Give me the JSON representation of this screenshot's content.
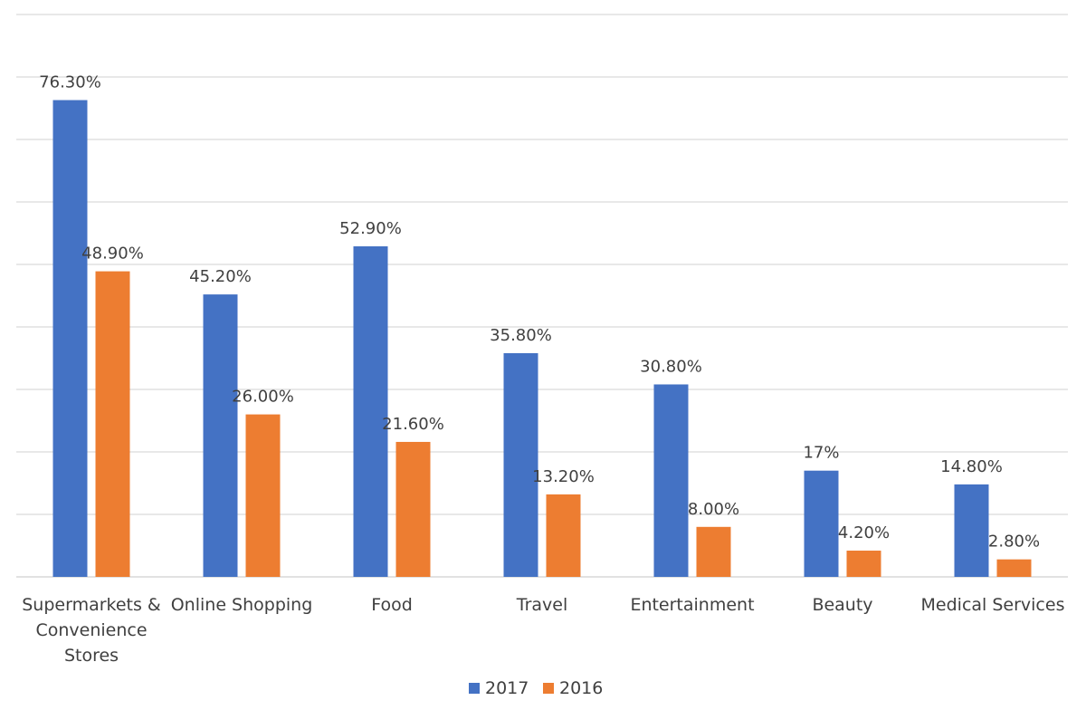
{
  "chart_data": {
    "type": "bar",
    "title": "",
    "xlabel": "",
    "ylabel": "",
    "ylim": [
      0,
      90
    ],
    "grid": true,
    "legend_position": "bottom",
    "categories": [
      [
        "Supermarkets &",
        "Convenience",
        "Stores"
      ],
      [
        "Online Shopping"
      ],
      [
        "Food"
      ],
      [
        "Travel"
      ],
      [
        "Entertainment"
      ],
      [
        "Beauty"
      ],
      [
        "Medical Services"
      ]
    ],
    "series": [
      {
        "name": "2017",
        "color": "#4472c4",
        "values": [
          76.3,
          45.2,
          52.9,
          35.8,
          30.8,
          17,
          14.8
        ],
        "labels": [
          "76.30%",
          "45.20%",
          "52.90%",
          "35.80%",
          "30.80%",
          "17%",
          "14.80%"
        ]
      },
      {
        "name": "2016",
        "color": "#ed7d31",
        "values": [
          48.9,
          26.0,
          21.6,
          13.2,
          8.0,
          4.2,
          2.8
        ],
        "labels": [
          "48.90%",
          "26.00%",
          "21.60%",
          "13.20%",
          "8.00%",
          "4.20%",
          "2.80%"
        ]
      }
    ]
  }
}
